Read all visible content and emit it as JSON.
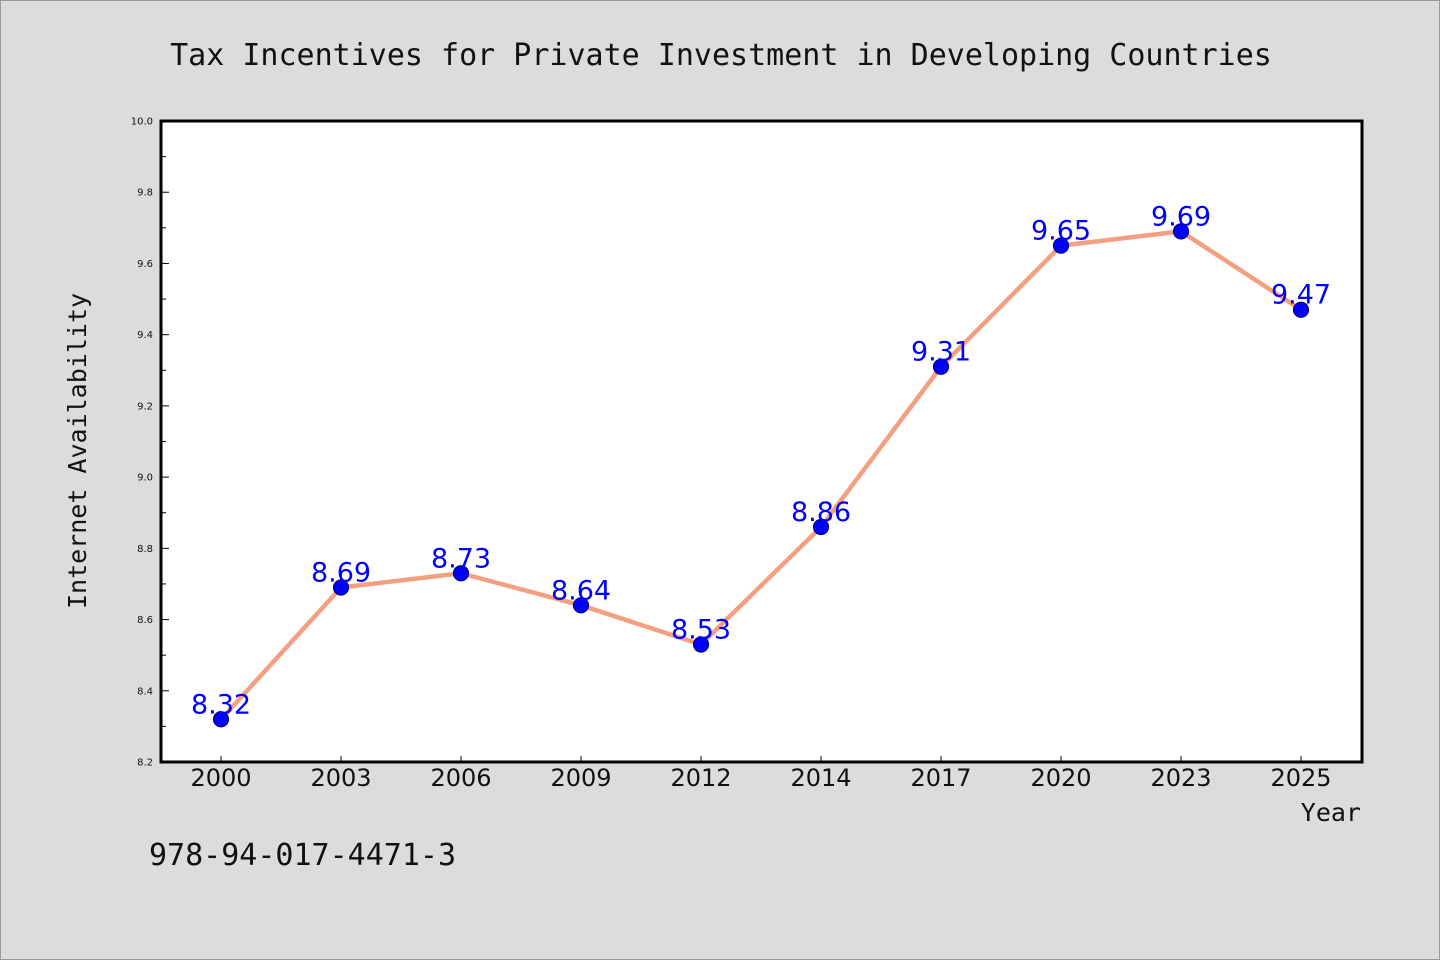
{
  "colors": {
    "figure_background": "#dcdcdc",
    "plot_background": "#ffffff",
    "line": "#f4a080",
    "marker_fill": "#0000ff",
    "marker_edge": "#000080",
    "data_label": "#0000ff",
    "text": "#111111"
  },
  "footer": {
    "isbn": "978-94-017-4471-3"
  },
  "chart_data": {
    "type": "line",
    "title": "Tax Incentives for Private Investment in Developing Countries",
    "xlabel": "Year",
    "ylabel": "Internet Availability",
    "categories": [
      "2000",
      "2003",
      "2006",
      "2009",
      "2012",
      "2014",
      "2017",
      "2020",
      "2023",
      "2025"
    ],
    "series": [
      {
        "values": [
          8.32,
          8.69,
          8.73,
          8.64,
          8.53,
          8.86,
          9.31,
          9.65,
          9.69,
          9.47
        ]
      }
    ],
    "data_labels": [
      "8.32",
      "8.69",
      "8.73",
      "8.64",
      "8.53",
      "8.86",
      "9.31",
      "9.65",
      "9.69",
      "9.47"
    ],
    "ylim": [
      8.2,
      10.0
    ],
    "y_ticks": [
      "8.2",
      "8.4",
      "8.6",
      "8.8",
      "9.0",
      "9.2",
      "9.4",
      "9.6",
      "9.8",
      "10.0"
    ],
    "grid": false,
    "legend": "none",
    "markers": "circle"
  }
}
